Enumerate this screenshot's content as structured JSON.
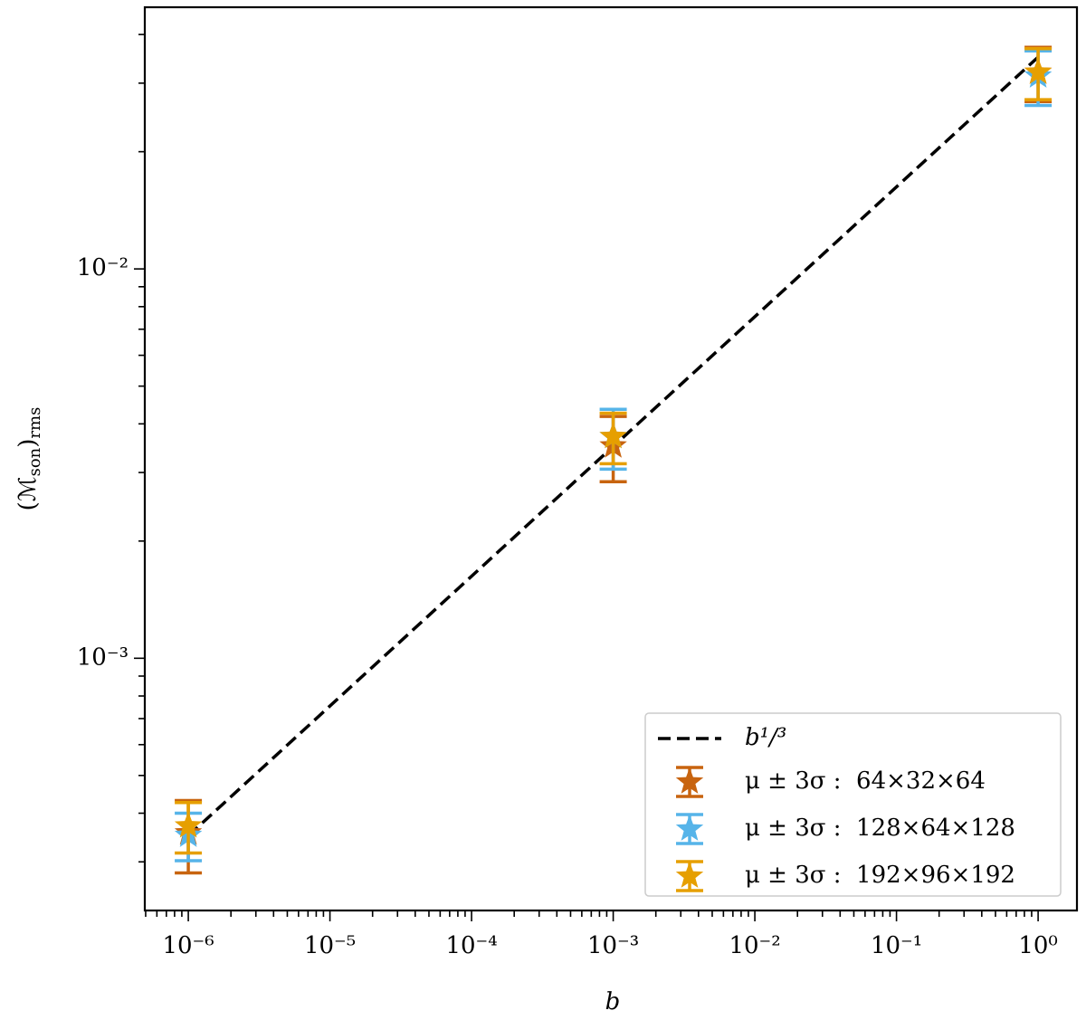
{
  "chart_data": {
    "type": "errorbar",
    "xlabel": "b",
    "ylabel": [
      "(ℳ",
      "son",
      ")",
      "rms"
    ],
    "xscale": "log",
    "yscale": "log",
    "xlim": [
      4.93e-07,
      1.88
    ],
    "ylim": [
      0.000225,
      0.047
    ],
    "xticks": [
      {
        "value": 1e-06,
        "label": "10⁻⁶"
      },
      {
        "value": 1e-05,
        "label": "10⁻⁵"
      },
      {
        "value": 0.0001,
        "label": "10⁻⁴"
      },
      {
        "value": 0.001,
        "label": "10⁻³"
      },
      {
        "value": 0.01,
        "label": "10⁻²"
      },
      {
        "value": 0.1,
        "label": "10⁻¹"
      },
      {
        "value": 1,
        "label": "10⁰"
      }
    ],
    "yticks": [
      {
        "value": 0.001,
        "label": "10⁻³"
      },
      {
        "value": 0.01,
        "label": "10⁻²"
      }
    ],
    "x": [
      1e-06,
      0.001,
      1
    ],
    "fit": {
      "name": "b¹/³",
      "color": "#000000",
      "values": [
        0.00035,
        0.0035,
        0.035
      ]
    },
    "series": [
      {
        "name": "μ ± 3σ :  64×32×64",
        "color": "#c8640f",
        "values": [
          0.000356,
          0.00351,
          0.032
        ],
        "errors": [
          7.5e-05,
          0.00067,
          0.0051
        ]
      },
      {
        "name": "μ ± 3σ :  128×64×128",
        "color": "#56b4e9",
        "values": [
          0.000351,
          0.00371,
          0.0313
        ],
        "errors": [
          4.9e-05,
          0.00065,
          0.005
        ]
      },
      {
        "name": "μ ± 3σ :  192×96×192",
        "color": "#e69f00",
        "values": [
          0.000371,
          0.00371,
          0.032
        ],
        "errors": [
          5.5e-05,
          0.00055,
          0.0048
        ]
      }
    ],
    "legend": "lower right"
  }
}
